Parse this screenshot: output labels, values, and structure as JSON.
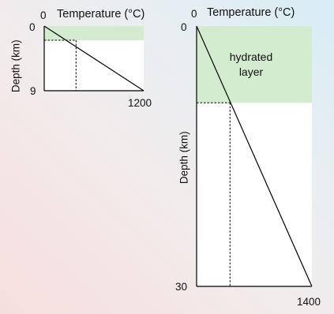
{
  "panels": [
    {
      "x_title": "Temperature (°C)",
      "y_title": "Depth (km)",
      "x_tick_min": "0",
      "x_tick_max": "1200",
      "y_tick_min": "0",
      "y_tick_max": "9",
      "hydrated_depth_fraction": 0.22,
      "crossing_temperature_fraction": 0.32
    },
    {
      "x_title": "Temperature (°C)",
      "y_title": "Depth (km)",
      "x_tick_min": "0",
      "x_tick_max": "1400",
      "y_tick_min": "0",
      "y_tick_max": "30",
      "hydrated_label": "hydrated\nlayer",
      "hydrated_depth_fraction": 0.295,
      "crossing_temperature_fraction": 0.29
    }
  ],
  "colors": {
    "hydrated_fill": "#d3ebcf",
    "plot_fill": "#ffffff",
    "line": "#000000"
  }
}
